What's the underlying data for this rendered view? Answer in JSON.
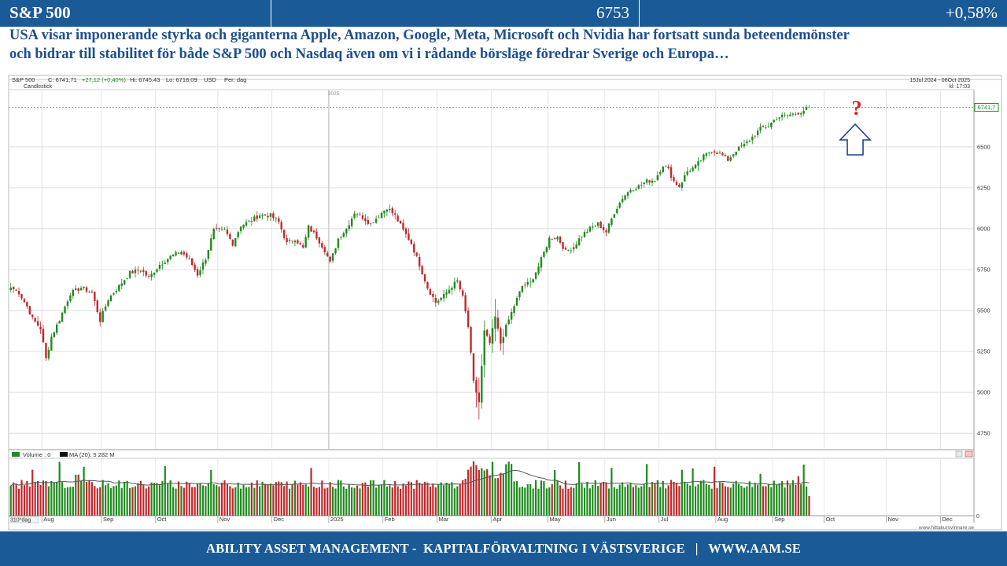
{
  "header": {
    "title": "S&P 500",
    "value": "6753",
    "change": "+0,58%"
  },
  "headline": {
    "line1": "USA visar imponerande styrka och giganterna Apple, Amazon, Google, Meta, Microsoft och Nvidia har fortsatt sunda beteendemönster",
    "line2": "och bidrar till stabilitet för både S&P 500 och Nasdaq även om vi i rådande börsläge föredrar Sverige och Europa…"
  },
  "chart_info": {
    "name": "S&P 500",
    "close": "C: 6741,71",
    "change": "+27,12 (+0,40%)",
    "high": "Hi: 6745,43",
    "low": "Lo: 6718,09",
    "currency": "USD",
    "period": "Per: dag",
    "style": "Candlestick",
    "date_range": "15Jul 2024 - 08Oct 2025",
    "time": "kl: 17:03",
    "year_marker": "2025",
    "last_price_label": "6741,7",
    "annotation": "?",
    "volume_legend": "Volume : 0",
    "ma_legend": "MA (20): 5 282 M",
    "period_label": "310*dag",
    "volume_axis_zero": "0",
    "source": "www.hittakursvinnare.se"
  },
  "colors": {
    "up": "#1f8a1f",
    "down": "#c0282d",
    "header_bg": "#1a5a96",
    "headline": "#1f4e8c",
    "arrow": "#1e3f8f",
    "question": "#e02020"
  },
  "chart_data": {
    "type": "candlestick",
    "ylim": [
      4650,
      6850
    ],
    "y_ticks": [
      4750,
      5000,
      5250,
      5500,
      5750,
      6000,
      6250,
      6500
    ],
    "x_ticks": [
      {
        "label": "Aug",
        "i": 12
      },
      {
        "label": "Sep",
        "i": 34
      },
      {
        "label": "Oct",
        "i": 54
      },
      {
        "label": "Nov",
        "i": 77
      },
      {
        "label": "Dec",
        "i": 97
      },
      {
        "label": "2025",
        "i": 118
      },
      {
        "label": "Feb",
        "i": 138
      },
      {
        "label": "Mar",
        "i": 158
      },
      {
        "label": "Apr",
        "i": 178
      },
      {
        "label": "May",
        "i": 199
      },
      {
        "label": "Jun",
        "i": 220
      },
      {
        "label": "Jul",
        "i": 240
      },
      {
        "label": "Aug",
        "i": 261
      },
      {
        "label": "Sep",
        "i": 282
      },
      {
        "label": "Oct",
        "i": 301
      },
      {
        "label": "Nov",
        "i": 324
      },
      {
        "label": "Dec",
        "i": 344
      }
    ],
    "total_slots": 360,
    "anchors": [
      [
        0,
        5640
      ],
      [
        3,
        5610
      ],
      [
        6,
        5525
      ],
      [
        8,
        5450
      ],
      [
        11,
        5390
      ],
      [
        13,
        5205
      ],
      [
        15,
        5340
      ],
      [
        18,
        5445
      ],
      [
        22,
        5605
      ],
      [
        26,
        5640
      ],
      [
        30,
        5610
      ],
      [
        33,
        5440
      ],
      [
        36,
        5570
      ],
      [
        40,
        5650
      ],
      [
        44,
        5730
      ],
      [
        48,
        5750
      ],
      [
        51,
        5700
      ],
      [
        55,
        5780
      ],
      [
        59,
        5830
      ],
      [
        63,
        5860
      ],
      [
        66,
        5810
      ],
      [
        69,
        5720
      ],
      [
        72,
        5820
      ],
      [
        75,
        5990
      ],
      [
        79,
        5990
      ],
      [
        82,
        5910
      ],
      [
        85,
        6020
      ],
      [
        89,
        6050
      ],
      [
        92,
        6085
      ],
      [
        96,
        6080
      ],
      [
        99,
        6040
      ],
      [
        102,
        5910
      ],
      [
        105,
        5940
      ],
      [
        108,
        5880
      ],
      [
        110,
        6010
      ],
      [
        113,
        5950
      ],
      [
        116,
        5870
      ],
      [
        118,
        5790
      ],
      [
        121,
        5940
      ],
      [
        124,
        6000
      ],
      [
        127,
        6100
      ],
      [
        130,
        6070
      ],
      [
        133,
        6030
      ],
      [
        136,
        6080
      ],
      [
        139,
        6130
      ],
      [
        142,
        6080
      ],
      [
        145,
        5990
      ],
      [
        148,
        5910
      ],
      [
        151,
        5780
      ],
      [
        154,
        5640
      ],
      [
        157,
        5550
      ],
      [
        160,
        5590
      ],
      [
        163,
        5650
      ],
      [
        165,
        5680
      ],
      [
        167,
        5580
      ],
      [
        169,
        5400
      ],
      [
        171,
        5060
      ],
      [
        173,
        4940
      ],
      [
        175,
        5370
      ],
      [
        177,
        5300
      ],
      [
        179,
        5460
      ],
      [
        181,
        5300
      ],
      [
        183,
        5400
      ],
      [
        186,
        5530
      ],
      [
        189,
        5650
      ],
      [
        192,
        5670
      ],
      [
        195,
        5770
      ],
      [
        199,
        5940
      ],
      [
        202,
        5950
      ],
      [
        205,
        5860
      ],
      [
        208,
        5890
      ],
      [
        211,
        5960
      ],
      [
        214,
        6000
      ],
      [
        217,
        6030
      ],
      [
        220,
        5980
      ],
      [
        223,
        6100
      ],
      [
        226,
        6190
      ],
      [
        229,
        6240
      ],
      [
        232,
        6260
      ],
      [
        235,
        6290
      ],
      [
        238,
        6300
      ],
      [
        241,
        6390
      ],
      [
        243,
        6360
      ],
      [
        245,
        6290
      ],
      [
        247,
        6260
      ],
      [
        250,
        6350
      ],
      [
        253,
        6380
      ],
      [
        256,
        6440
      ],
      [
        259,
        6480
      ],
      [
        262,
        6460
      ],
      [
        265,
        6420
      ],
      [
        268,
        6480
      ],
      [
        271,
        6510
      ],
      [
        274,
        6560
      ],
      [
        277,
        6610
      ],
      [
        280,
        6630
      ],
      [
        283,
        6680
      ],
      [
        286,
        6690
      ],
      [
        289,
        6700
      ],
      [
        292,
        6715
      ],
      [
        295,
        6742
      ]
    ],
    "volume_ylim": [
      0,
      9000
    ]
  }
}
